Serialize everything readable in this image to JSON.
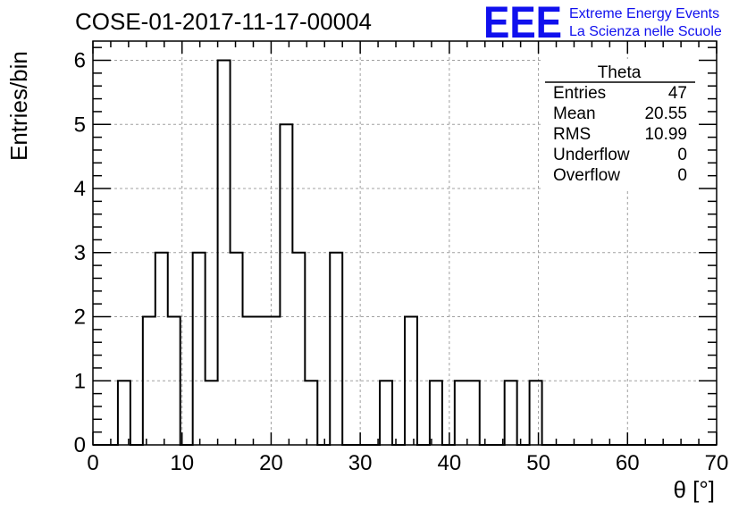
{
  "header": {
    "title": "COSE-01-2017-11-17-00004",
    "logo_text": "EEE",
    "logo_line1": "Extreme Energy Events",
    "logo_line2": "La Scienza nelle Scuole"
  },
  "stats": {
    "name": "Theta",
    "rows": [
      {
        "label": "Entries",
        "value": "47"
      },
      {
        "label": "Mean",
        "value": "20.55"
      },
      {
        "label": "RMS",
        "value": "10.99"
      },
      {
        "label": "Underflow",
        "value": "0"
      },
      {
        "label": "Overflow",
        "value": "0"
      }
    ]
  },
  "colors": {
    "logo": "#1010ee",
    "histogram": "#000000",
    "grid": "#a0a0a0"
  },
  "chart_data": {
    "type": "bar",
    "title": "COSE-01-2017-11-17-00004",
    "xlabel": "θ [°]",
    "ylabel": "Entries/bin",
    "xlim": [
      0,
      70
    ],
    "ylim": [
      0,
      6.3
    ],
    "bin_width": 1.4,
    "grid": true,
    "x_ticks": [
      0,
      10,
      20,
      30,
      40,
      50,
      60,
      70
    ],
    "y_ticks": [
      0,
      1,
      2,
      3,
      4,
      5,
      6
    ],
    "bin_edges": [
      0,
      1.4,
      2.8,
      4.2,
      5.6,
      7.0,
      8.4,
      9.8,
      11.2,
      12.6,
      14.0,
      15.4,
      16.8,
      18.2,
      19.6,
      21.0,
      22.4,
      23.8,
      25.2,
      26.6,
      28.0,
      29.4,
      30.8,
      32.2,
      33.6,
      35.0,
      36.4,
      37.8,
      39.2,
      40.6,
      42.0,
      43.4,
      44.8,
      46.2,
      47.6,
      49.0,
      50.4,
      51.8,
      53.2,
      54.6,
      56.0,
      57.4,
      58.8,
      60.2,
      61.6,
      63.0,
      64.4,
      65.8,
      67.2,
      68.6,
      70.0
    ],
    "values": [
      0,
      0,
      1,
      0,
      2,
      3,
      2,
      0,
      3,
      1,
      6,
      3,
      2,
      2,
      2,
      5,
      3,
      1,
      0,
      3,
      0,
      0,
      0,
      1,
      0,
      2,
      0,
      1,
      0,
      1,
      1,
      0,
      0,
      1,
      0,
      1,
      0,
      0,
      0,
      0,
      0,
      0,
      0,
      0,
      0,
      0,
      0,
      0,
      0,
      0
    ]
  }
}
